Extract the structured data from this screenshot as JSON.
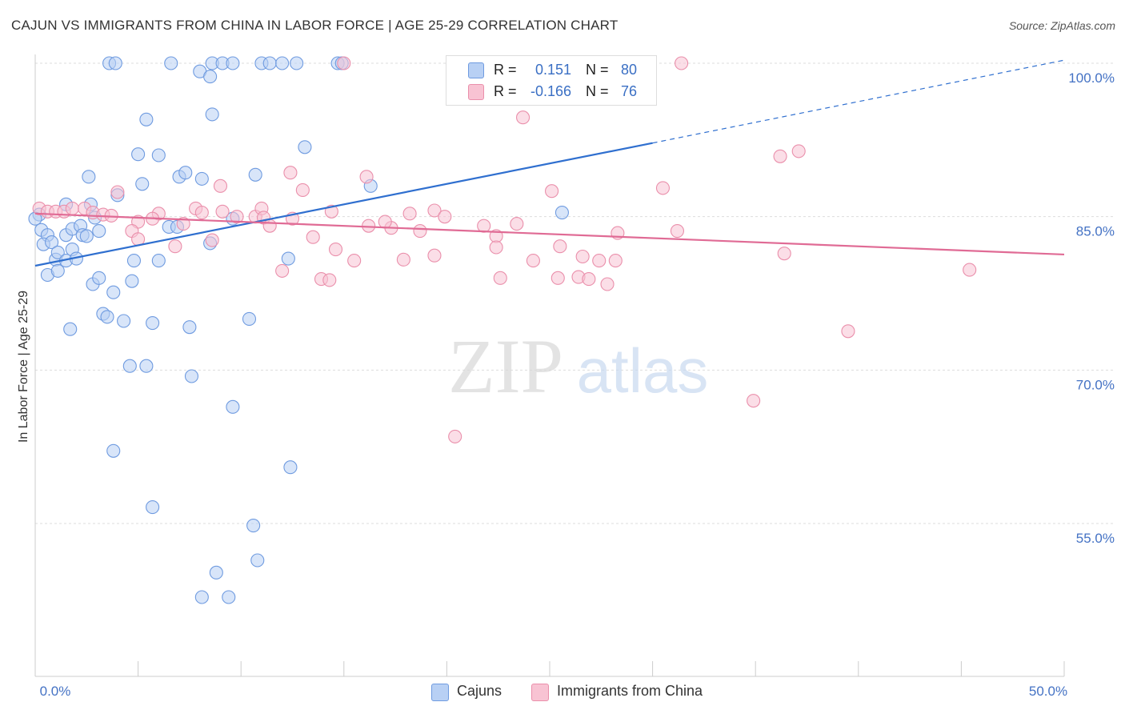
{
  "header": {
    "title": "CAJUN VS IMMIGRANTS FROM CHINA IN LABOR FORCE | AGE 25-29 CORRELATION CHART",
    "source": "Source: ZipAtlas.com"
  },
  "watermark": {
    "zip": "ZIP",
    "atlas": "atlas"
  },
  "colors": {
    "cajun_fill": "#b8d0f4",
    "cajun_stroke": "#6f9be0",
    "cajun_line": "#2f6fcf",
    "china_fill": "#f8c3d3",
    "china_stroke": "#ea8fab",
    "china_line": "#e06b95",
    "tick_text": "#4472c4",
    "grid": "#dddddd"
  },
  "stats": [
    {
      "swatch": "cajun",
      "r_label": "R =",
      "r_value": "0.151",
      "n_label": "N =",
      "n_value": "80"
    },
    {
      "swatch": "china",
      "r_label": "R =",
      "r_value": "-0.166",
      "n_label": "N =",
      "n_value": "76"
    }
  ],
  "legend": [
    {
      "swatch": "cajun",
      "label": "Cajuns"
    },
    {
      "swatch": "china",
      "label": "Immigrants from China"
    }
  ],
  "chart_data": {
    "type": "scatter",
    "title": "CAJUN VS IMMIGRANTS FROM CHINA IN LABOR FORCE | AGE 25-29 CORRELATION CHART",
    "xlabel": "",
    "ylabel": "In Labor Force | Age 25-29",
    "xlim": [
      0,
      50
    ],
    "ylim": [
      40,
      101.5
    ],
    "x_tick_labels": [
      {
        "value": 0,
        "label": "0.0%"
      },
      {
        "value": 50,
        "label": "50.0%"
      }
    ],
    "y_tick_labels": [
      {
        "value": 100,
        "label": "100.0%"
      },
      {
        "value": 85,
        "label": "85.0%"
      },
      {
        "value": 70,
        "label": "70.0%"
      },
      {
        "value": 55,
        "label": "55.0%"
      }
    ],
    "grid": true,
    "legend_position": "bottom-center",
    "series": [
      {
        "name": "Cajuns",
        "color": "#6f9be0",
        "r": 0.151,
        "n": 80,
        "trend": {
          "x0": 0,
          "y0": 80.2,
          "x1": 30,
          "y1": 92.2,
          "dashed_to_x": 50,
          "dashed_to_y": 100.3
        },
        "points": [
          [
            3.6,
            100
          ],
          [
            3.9,
            100
          ],
          [
            6.6,
            100
          ],
          [
            8.6,
            100
          ],
          [
            9.1,
            100
          ],
          [
            9.6,
            100
          ],
          [
            11.0,
            100
          ],
          [
            11.4,
            100
          ],
          [
            12.0,
            100
          ],
          [
            12.7,
            100
          ],
          [
            14.7,
            100
          ],
          [
            14.9,
            100
          ],
          [
            8.0,
            99.2
          ],
          [
            8.5,
            98.7
          ],
          [
            5.4,
            94.5
          ],
          [
            8.6,
            95.0
          ],
          [
            5.0,
            91.1
          ],
          [
            6.0,
            91.0
          ],
          [
            13.1,
            91.8
          ],
          [
            2.6,
            88.9
          ],
          [
            5.2,
            88.2
          ],
          [
            7.0,
            88.9
          ],
          [
            7.3,
            89.3
          ],
          [
            8.1,
            88.7
          ],
          [
            10.7,
            89.1
          ],
          [
            16.3,
            88.0
          ],
          [
            4.0,
            87.1
          ],
          [
            0.2,
            85.2
          ],
          [
            1.5,
            86.2
          ],
          [
            2.7,
            86.2
          ],
          [
            0.0,
            84.8
          ],
          [
            2.9,
            84.9
          ],
          [
            25.6,
            85.4
          ],
          [
            0.3,
            83.7
          ],
          [
            0.6,
            83.2
          ],
          [
            1.5,
            83.2
          ],
          [
            1.8,
            83.8
          ],
          [
            2.2,
            84.1
          ],
          [
            2.3,
            83.2
          ],
          [
            2.5,
            83.1
          ],
          [
            3.1,
            83.6
          ],
          [
            6.5,
            84.0
          ],
          [
            6.9,
            84.0
          ],
          [
            9.6,
            84.8
          ],
          [
            0.4,
            82.3
          ],
          [
            0.8,
            82.5
          ],
          [
            1.0,
            80.8
          ],
          [
            1.1,
            81.5
          ],
          [
            1.5,
            80.7
          ],
          [
            1.8,
            81.8
          ],
          [
            2.0,
            80.9
          ],
          [
            8.5,
            82.4
          ],
          [
            0.6,
            79.3
          ],
          [
            1.1,
            79.7
          ],
          [
            2.8,
            78.4
          ],
          [
            3.1,
            79.0
          ],
          [
            4.7,
            78.7
          ],
          [
            3.8,
            77.6
          ],
          [
            4.8,
            80.7
          ],
          [
            6.0,
            80.7
          ],
          [
            12.3,
            80.9
          ],
          [
            3.3,
            75.5
          ],
          [
            3.5,
            75.2
          ],
          [
            4.3,
            74.8
          ],
          [
            1.7,
            74.0
          ],
          [
            5.7,
            74.6
          ],
          [
            7.5,
            74.2
          ],
          [
            10.4,
            75.0
          ],
          [
            4.6,
            70.4
          ],
          [
            5.4,
            70.4
          ],
          [
            7.6,
            69.4
          ],
          [
            9.6,
            66.4
          ],
          [
            3.8,
            62.1
          ],
          [
            12.4,
            60.5
          ],
          [
            5.7,
            56.6
          ],
          [
            10.6,
            54.8
          ],
          [
            8.8,
            50.2
          ],
          [
            10.8,
            51.4
          ],
          [
            8.1,
            47.8
          ],
          [
            9.4,
            47.8
          ]
        ]
      },
      {
        "name": "Immigrants from China",
        "color": "#ea8fab",
        "r": -0.166,
        "n": 76,
        "trend": {
          "x0": 0,
          "y0": 85.3,
          "x1": 50,
          "y1": 81.3
        },
        "points": [
          [
            15.0,
            100
          ],
          [
            31.4,
            100
          ],
          [
            20.9,
            96.6
          ],
          [
            23.7,
            94.7
          ],
          [
            36.2,
            90.9
          ],
          [
            37.1,
            91.4
          ],
          [
            12.4,
            89.3
          ],
          [
            16.1,
            88.9
          ],
          [
            9.0,
            88.0
          ],
          [
            13.0,
            87.6
          ],
          [
            25.1,
            87.5
          ],
          [
            30.5,
            87.8
          ],
          [
            0.2,
            85.8
          ],
          [
            0.6,
            85.5
          ],
          [
            1.0,
            85.5
          ],
          [
            1.4,
            85.5
          ],
          [
            1.8,
            85.8
          ],
          [
            2.4,
            85.8
          ],
          [
            2.8,
            85.4
          ],
          [
            3.3,
            85.2
          ],
          [
            3.7,
            85.1
          ],
          [
            4.0,
            87.4
          ],
          [
            6.0,
            85.3
          ],
          [
            7.8,
            85.8
          ],
          [
            8.1,
            85.4
          ],
          [
            9.1,
            85.5
          ],
          [
            9.8,
            85.0
          ],
          [
            10.7,
            85.0
          ],
          [
            11.0,
            85.8
          ],
          [
            5.0,
            84.5
          ],
          [
            5.7,
            84.8
          ],
          [
            7.2,
            84.3
          ],
          [
            11.1,
            84.9
          ],
          [
            11.4,
            84.1
          ],
          [
            12.5,
            84.8
          ],
          [
            14.4,
            85.5
          ],
          [
            16.2,
            84.1
          ],
          [
            17.3,
            83.9
          ],
          [
            18.2,
            85.3
          ],
          [
            19.4,
            85.6
          ],
          [
            19.9,
            85.0
          ],
          [
            21.8,
            84.1
          ],
          [
            23.4,
            84.3
          ],
          [
            4.7,
            83.6
          ],
          [
            5.0,
            82.8
          ],
          [
            6.8,
            82.1
          ],
          [
            8.6,
            82.7
          ],
          [
            13.5,
            83.0
          ],
          [
            14.6,
            81.8
          ],
          [
            15.5,
            80.7
          ],
          [
            18.7,
            83.6
          ],
          [
            19.4,
            81.2
          ],
          [
            17.9,
            80.8
          ],
          [
            22.4,
            83.1
          ],
          [
            22.4,
            82.0
          ],
          [
            25.5,
            82.1
          ],
          [
            26.6,
            81.1
          ],
          [
            27.4,
            80.7
          ],
          [
            28.2,
            80.7
          ],
          [
            28.3,
            83.4
          ],
          [
            31.2,
            83.6
          ],
          [
            36.4,
            81.4
          ],
          [
            12.0,
            79.7
          ],
          [
            13.9,
            78.9
          ],
          [
            14.3,
            78.8
          ],
          [
            22.6,
            79.0
          ],
          [
            26.4,
            79.1
          ],
          [
            26.9,
            78.9
          ],
          [
            27.8,
            78.4
          ],
          [
            39.5,
            73.8
          ],
          [
            45.4,
            79.8
          ],
          [
            34.9,
            67.0
          ],
          [
            20.4,
            63.5
          ],
          [
            25.4,
            79.0
          ],
          [
            24.2,
            80.7
          ],
          [
            17.0,
            84.5
          ]
        ]
      }
    ]
  }
}
